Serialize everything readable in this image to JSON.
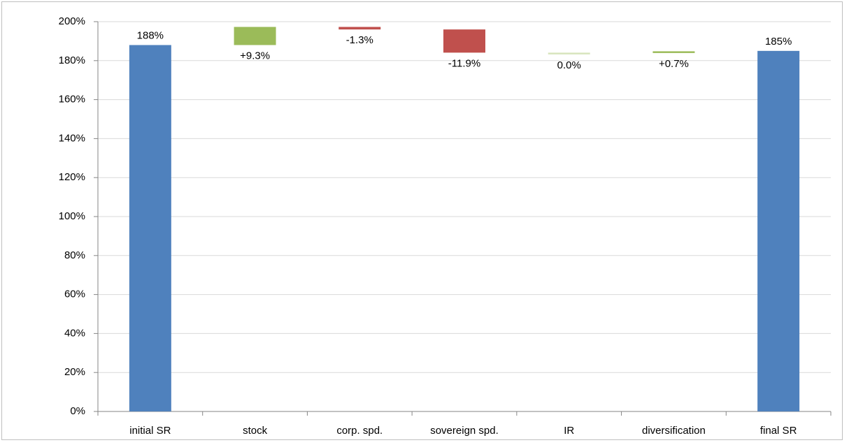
{
  "chart_data": {
    "type": "waterfall",
    "categories": [
      "initial SR",
      "stock",
      "corp. spd.",
      "sovereign spd.",
      "IR",
      "diversification",
      "final SR"
    ],
    "values": [
      188,
      9.3,
      -1.3,
      -11.9,
      0.0,
      0.7,
      185
    ],
    "value_labels": [
      "188%",
      "+9.3%",
      "-1.3%",
      "-11.9%",
      "0.0%",
      "+0.7%",
      "185%"
    ],
    "colors": [
      "#4f81bd",
      "#9bbb59",
      "#c0504d",
      "#c0504d",
      "#d7e4bd",
      "#9bbb59",
      "#4f81bd"
    ],
    "ylim": [
      0,
      200
    ],
    "yticks": [
      {
        "value": 0,
        "label": "0%"
      },
      {
        "value": 20,
        "label": "20%"
      },
      {
        "value": 40,
        "label": "40%"
      },
      {
        "value": 60,
        "label": "60%"
      },
      {
        "value": 80,
        "label": "80%"
      },
      {
        "value": 100,
        "label": "100%"
      },
      {
        "value": 120,
        "label": "120%"
      },
      {
        "value": 140,
        "label": "140%"
      },
      {
        "value": 160,
        "label": "160%"
      },
      {
        "value": 180,
        "label": "180%"
      },
      {
        "value": 200,
        "label": "200%"
      }
    ],
    "grid": true
  }
}
